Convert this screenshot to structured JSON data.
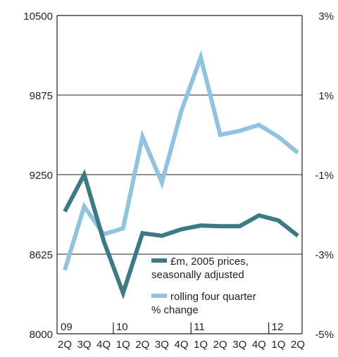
{
  "chart_data": {
    "type": "line",
    "categories": [
      "2Q",
      "3Q",
      "4Q",
      "1Q",
      "2Q",
      "3Q",
      "4Q",
      "1Q",
      "2Q",
      "3Q",
      "4Q",
      "1Q",
      "2Q"
    ],
    "year_labels": [
      {
        "label": "09",
        "index": 0
      },
      {
        "label": "10",
        "index": 3
      },
      {
        "label": "11",
        "index": 7
      },
      {
        "label": "12",
        "index": 11
      }
    ],
    "y_left": {
      "ticks": [
        "10500",
        "9875",
        "9250",
        "8625",
        "8000"
      ],
      "min": 8000,
      "max": 10500
    },
    "y_right": {
      "ticks": [
        "3%",
        "1%",
        "-1%",
        "-3%",
        "-5%"
      ],
      "min": -5,
      "max": 3
    },
    "series": [
      {
        "name": "£m, 2005 prices, seasonally adjusted",
        "axis": "left",
        "color": "#3e7a84",
        "values": [
          8960,
          9250,
          8730,
          8320,
          8790,
          8770,
          8820,
          8850,
          8845,
          8845,
          8930,
          8890,
          8770
        ]
      },
      {
        "name": "rolling four quarter % change",
        "axis": "right",
        "color": "#8fc3e0",
        "values": [
          -3.4,
          -1.8,
          -2.5,
          -2.35,
          -0.05,
          -1.2,
          0.6,
          1.95,
          0.0,
          0.1,
          0.25,
          -0.05,
          -0.45
        ]
      }
    ],
    "legend": {
      "position": "bottom-right",
      "lines": [
        [
          "£m, 2005 prices,",
          "seasonally adjusted"
        ],
        [
          "rolling four quarter",
          "% change"
        ]
      ]
    },
    "grid": true,
    "colors": {
      "axis": "#231f20",
      "grid": "#231f20"
    }
  }
}
